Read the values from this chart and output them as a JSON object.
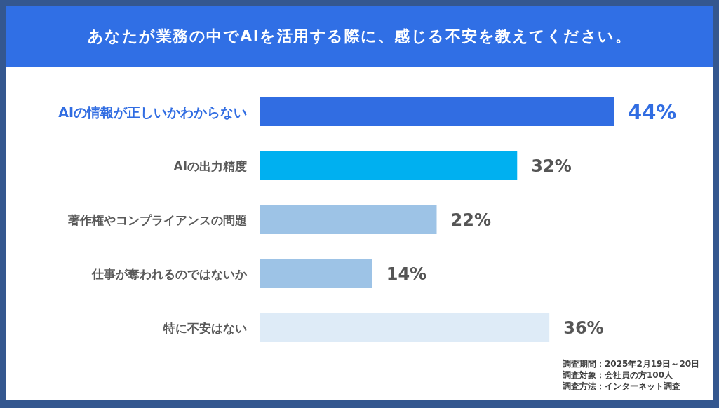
{
  "chart_data": {
    "type": "bar",
    "orientation": "horizontal",
    "title": "あなたが業務の中でAIを活用する際に、感じる不安を教えてください。",
    "categories": [
      "AIの情報が正しいかわからない",
      "AIの出力精度",
      "著作権やコンプライアンスの問題",
      "仕事が奪われるのではないか",
      "特に不安はない"
    ],
    "values": [
      44,
      32,
      22,
      14,
      36
    ],
    "colors": [
      "#316de2",
      "#00b0f0",
      "#9dc3e6",
      "#9dc3e6",
      "#deebf7"
    ],
    "value_labels": [
      "44%",
      "32%",
      "22%",
      "14%",
      "36%"
    ],
    "annotations": [
      "調査期間：2025年2月19日～20日",
      "調査対象：会社員の方100人",
      "調査方法：インターネット調査"
    ]
  }
}
